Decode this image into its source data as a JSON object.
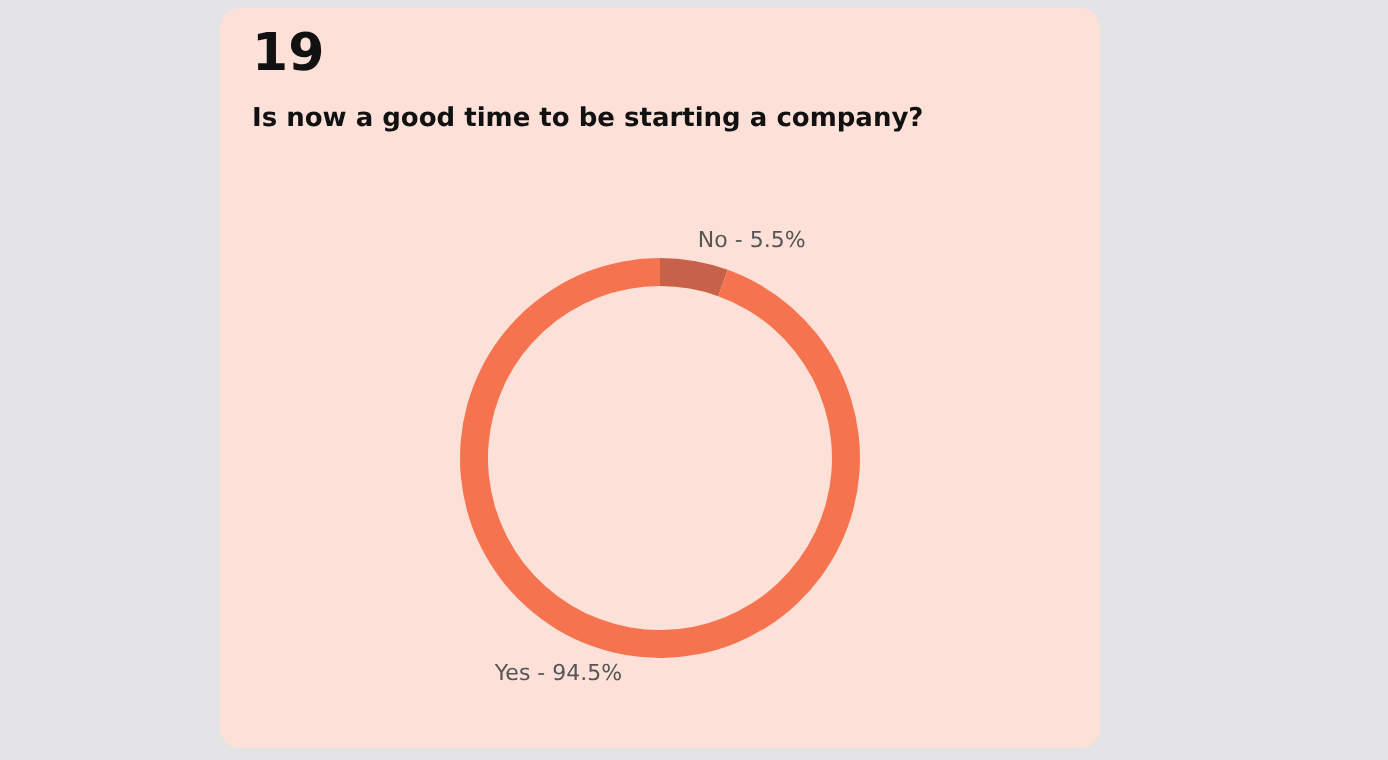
{
  "chart_data": {
    "type": "donut",
    "title": "19",
    "subtitle": "Is now a good time to be starting a company?",
    "categories": [
      "No - 5.5%",
      "Yes - 94.5%"
    ],
    "values": [
      5.5,
      94.5
    ],
    "colors": [
      "#c8614a",
      "#f5744f"
    ],
    "legend": false
  }
}
